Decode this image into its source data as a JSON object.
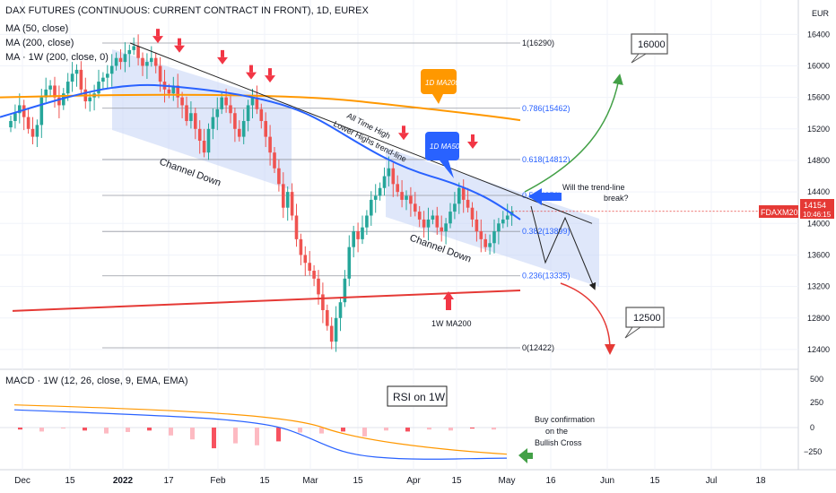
{
  "header": {
    "title": "DAX FUTURES (CONTINUOUS: CURRENT CONTRACT IN FRONT), 1D, EUREX",
    "indicators": [
      "MA (50, close)",
      "MA (200, close)",
      "MA · 1W (200, close, 0)"
    ],
    "currency": "EUR"
  },
  "macd": {
    "label": "MACD · 1W (12, 26, close, 9, EMA, EMA)",
    "rsi_box": "RSI on 1W",
    "buy_note": [
      "Buy confirmation",
      "on the",
      "Bullish Cross"
    ]
  },
  "price_tag": {
    "symbol": "FDAXM2022",
    "price": "14154",
    "countdown": "10:46:15"
  },
  "annotations": {
    "channel1": "Channel Down",
    "channel2": "Channel Down",
    "ath_line1": "All Time High",
    "ath_line2": "Lower Highs trend-line",
    "ma200_1d": "1D MA200",
    "ma50_1d": "1D MA50",
    "ma200_1w": "1W MA200",
    "question1": "Will the trend-line",
    "question2": "break?",
    "target_up": "16000",
    "target_down": "12500"
  },
  "colors": {
    "bull": "#26a69a",
    "bear": "#ef5350",
    "ma50": "#2962ff",
    "ma200": "#ff9800",
    "ma200w": "#e53935",
    "channel": "#c5d3f6",
    "arrow_red": "#f23645",
    "arrow_blue": "#2962ff",
    "projection_up": "#43a047",
    "projection_down": "#e53935"
  },
  "chart_data": {
    "type": "candlestick",
    "title": "DAX FUTURES (CONTINUOUS: CURRENT CONTRACT IN FRONT), 1D, EUREX",
    "x_ticks": [
      "Dec",
      "15",
      "2022",
      "17",
      "Feb",
      "15",
      "Mar",
      "15",
      "Apr",
      "15",
      "May",
      "16",
      "Jun",
      "15",
      "Jul",
      "18"
    ],
    "y_ticks": [
      16400,
      16000,
      15600,
      15200,
      14800,
      14400,
      14000,
      13600,
      13200,
      12800,
      12400
    ],
    "y_range": [
      12200,
      16700
    ],
    "fibonacci": [
      {
        "label": "1(16290)",
        "value": 16290
      },
      {
        "label": "0.786(15462)",
        "value": 15462
      },
      {
        "label": "0.618(14812)",
        "value": 14812
      },
      {
        "label": "0.5(14356)",
        "value": 14356
      },
      {
        "label": "0.382(13899)",
        "value": 13899
      },
      {
        "label": "0.236(13335)",
        "value": 13335
      },
      {
        "label": "0(12422)",
        "value": 12422
      }
    ],
    "last_price": 14154,
    "closes": [
      15300,
      15400,
      15500,
      15350,
      15200,
      15100,
      15250,
      15600,
      15700,
      15750,
      15600,
      15500,
      15650,
      15800,
      15900,
      15950,
      15700,
      15550,
      15600,
      15650,
      15800,
      15850,
      15900,
      16000,
      16100,
      16050,
      16150,
      16200,
      16250,
      16100,
      16000,
      16050,
      16100,
      16000,
      15800,
      15700,
      15650,
      15750,
      15600,
      15500,
      15300,
      15400,
      15200,
      15050,
      14900,
      15200,
      15350,
      15450,
      15600,
      15500,
      15400,
      15200,
      15100,
      15300,
      15500,
      15600,
      15450,
      15300,
      15100,
      14900,
      14700,
      14500,
      14200,
      14400,
      14100,
      13800,
      13600,
      13500,
      13400,
      13300,
      13100,
      12900,
      12700,
      12500,
      12800,
      13000,
      13300,
      13700,
      13900,
      13800,
      13950,
      14100,
      14300,
      14350,
      14450,
      14600,
      14700,
      14500,
      14400,
      14300,
      14350,
      14250,
      14150,
      14050,
      13950,
      14050,
      14100,
      13950,
      13900,
      14000,
      14150,
      14250,
      14450,
      14300,
      14200,
      14050,
      13900,
      13800,
      13700,
      13750,
      13900,
      14000,
      14050,
      14100,
      14150
    ],
    "ma200_1d": {
      "start": 15600,
      "peak": 15650,
      "end": 15310
    },
    "ma200_1w": {
      "start": 12890,
      "end": 13150
    },
    "macd_rsi_series": [
      {
        "name": "signal",
        "start": 230,
        "end": -270
      },
      {
        "name": "macd",
        "start": 180,
        "end": -310
      }
    ],
    "macd_histogram": [
      -20,
      -40,
      -10,
      -30,
      -60,
      -45,
      -30,
      -80,
      -120,
      -210,
      -160,
      -180,
      -140,
      -50,
      -60,
      -40,
      -90,
      -30,
      -40,
      -20,
      -30,
      -10,
      -20
    ],
    "projection_up_target": 16000,
    "projection_down_target": 12500
  }
}
